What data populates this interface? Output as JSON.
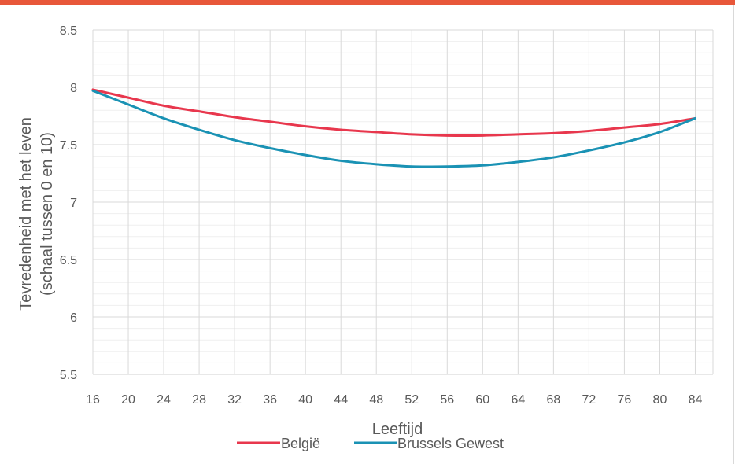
{
  "header": {
    "text": ""
  },
  "colors": {
    "accent": "#e8573a",
    "belgie": "#e8374d",
    "brussels": "#1a92b4",
    "grid": "#d9d9d9",
    "text": "#595959"
  },
  "chart_data": {
    "type": "line",
    "title": "",
    "xlabel": "Leeftijd",
    "ylabel": "Tevredenheid met het leven",
    "ylabel2": "(schaal tussen 0 en 10)",
    "xlim": [
      16,
      86
    ],
    "ylim": [
      5.5,
      8.5
    ],
    "x_ticks": [
      16,
      20,
      24,
      28,
      32,
      36,
      40,
      44,
      48,
      52,
      56,
      60,
      64,
      68,
      72,
      76,
      80,
      84
    ],
    "y_ticks": [
      5.5,
      6,
      6.5,
      7,
      7.5,
      8,
      8.5
    ],
    "y_tick_labels": [
      "5.5",
      "6",
      "6.5",
      "7",
      "7.5",
      "8",
      "8.5"
    ],
    "grid": "horizontal major and minor, vertical at each tick",
    "legend_position": "bottom",
    "series": [
      {
        "name": "België",
        "color": "#e8374d",
        "x": [
          16,
          20,
          24,
          28,
          32,
          36,
          40,
          44,
          48,
          52,
          56,
          60,
          64,
          68,
          72,
          76,
          80,
          84
        ],
        "values": [
          7.98,
          7.91,
          7.84,
          7.79,
          7.74,
          7.7,
          7.66,
          7.63,
          7.61,
          7.59,
          7.58,
          7.58,
          7.59,
          7.6,
          7.62,
          7.65,
          7.68,
          7.73
        ]
      },
      {
        "name": "Brussels Gewest",
        "color": "#1a92b4",
        "x": [
          16,
          20,
          24,
          28,
          32,
          36,
          40,
          44,
          48,
          52,
          56,
          60,
          64,
          68,
          72,
          76,
          80,
          84
        ],
        "values": [
          7.97,
          7.85,
          7.73,
          7.63,
          7.54,
          7.47,
          7.41,
          7.36,
          7.33,
          7.31,
          7.31,
          7.32,
          7.35,
          7.39,
          7.45,
          7.52,
          7.61,
          7.73
        ]
      }
    ]
  }
}
